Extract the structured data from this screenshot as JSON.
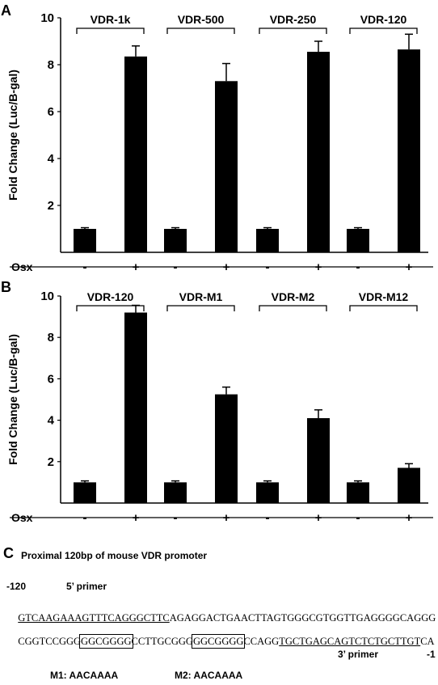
{
  "panels": {
    "a": "A",
    "b": "B",
    "c": "C"
  },
  "treatment_label": "Osx",
  "treatment_ticks": [
    "-",
    "+"
  ],
  "chart_data": [
    {
      "type": "bar",
      "panel": "A",
      "ylabel": "Fold Change (Luc/B-gal)",
      "ylim": [
        0,
        10
      ],
      "yticks": [
        2,
        4,
        6,
        8,
        10
      ],
      "groups": [
        "VDR-1k",
        "VDR-500",
        "VDR-250",
        "VDR-120"
      ],
      "categories": [
        "-",
        "+",
        "-",
        "+",
        "-",
        "+",
        "-",
        "+"
      ],
      "values": [
        1.0,
        8.35,
        1.0,
        7.3,
        1.0,
        8.55,
        1.0,
        8.65
      ],
      "errors": [
        0.05,
        0.45,
        0.05,
        0.75,
        0.05,
        0.45,
        0.05,
        0.65
      ]
    },
    {
      "type": "bar",
      "panel": "B",
      "ylabel": "Fold Change (Luc/B-gal)",
      "ylim": [
        0,
        10
      ],
      "yticks": [
        2,
        4,
        6,
        8,
        10
      ],
      "groups": [
        "VDR-120",
        "VDR-M1",
        "VDR-M2",
        "VDR-M12"
      ],
      "categories": [
        "-",
        "+",
        "-",
        "+",
        "-",
        "+",
        "-",
        "+"
      ],
      "values": [
        1.0,
        9.2,
        1.0,
        5.25,
        1.0,
        4.1,
        1.0,
        1.7
      ],
      "errors": [
        0.07,
        0.35,
        0.07,
        0.35,
        0.07,
        0.4,
        0.07,
        0.2
      ]
    }
  ],
  "panel_c": {
    "title": "Proximal 120bp of mouse VDR promoter",
    "start_label": "-120",
    "primer5": "5’ primer",
    "primer3": "3’ primer",
    "end_label": "-1",
    "line1": {
      "u": "GTCAAGAAAGTTTCAGGGCTTC",
      "rest": "AGAGGACTGAACTTAGTGGGCGTGGTTGAGGGGCAGGG"
    },
    "line2": {
      "p1": "CGGTCCGGG",
      "b1": "GGCGGGG",
      "p2": "CCTTGCGGG",
      "b2": "GGCGGGG",
      "p3": "CCAGG",
      "u": "TGCTGAGCAGTCTCTGCTTGT",
      "p4": "CA"
    },
    "m1": "M1: AACAAAA",
    "m2": "M2: AACAAAA"
  }
}
